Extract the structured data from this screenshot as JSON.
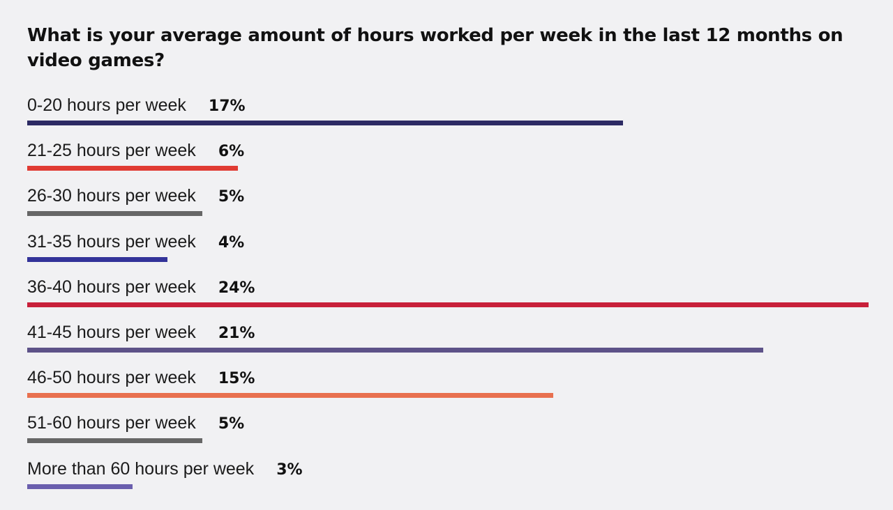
{
  "chart_data": {
    "type": "bar",
    "orientation": "horizontal",
    "title": "What is your average amount of hours worked per week in the last 12 months on video games?",
    "categories": [
      "0-20 hours per week",
      "21-25 hours per week",
      "26-30 hours per week",
      "31-35 hours per week",
      "36-40 hours per week",
      "41-45 hours per week",
      "46-50 hours per week",
      "51-60 hours per week",
      "More than 60 hours per week"
    ],
    "values": [
      17,
      6,
      5,
      4,
      24,
      21,
      15,
      5,
      3
    ],
    "value_labels": [
      "17%",
      "6%",
      "5%",
      "4%",
      "24%",
      "21%",
      "15%",
      "5%",
      "3%"
    ],
    "colors": [
      "#2c2a63",
      "#e03b33",
      "#666666",
      "#333399",
      "#c8203a",
      "#5d5288",
      "#e8704f",
      "#666666",
      "#6a5ead"
    ],
    "xlim": [
      0,
      24
    ],
    "grid": false,
    "legend": "none"
  }
}
